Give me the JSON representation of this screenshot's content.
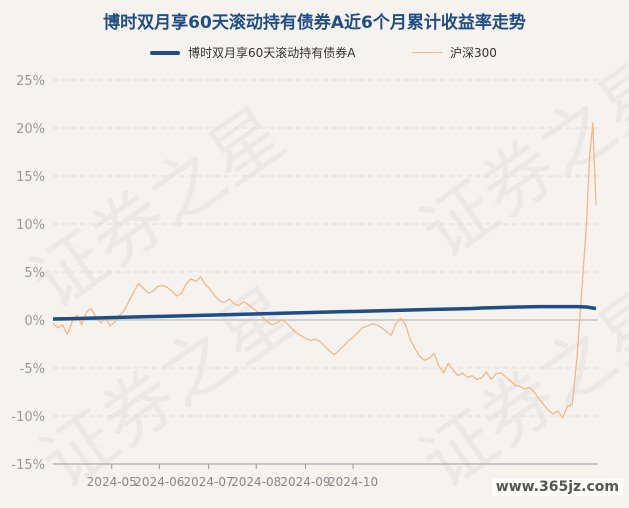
{
  "chart_data": {
    "type": "line",
    "title": "博时双月享60天滚动持有债券A近6个月累计收益率走势",
    "y_ticks": [
      "25%",
      "20%",
      "15%",
      "10%",
      "5%",
      "0%",
      "-5%",
      "-10%",
      "-15%"
    ],
    "ylim": [
      -15,
      25
    ],
    "x_ticks": [
      "2024-05",
      "2024-06",
      "2024-07",
      "2024-08",
      "2024-09",
      "2024-10"
    ],
    "grid": true,
    "legend_position": "top",
    "series": [
      {
        "name": "博时双月享60天滚动持有债券A",
        "color": "#1f4d86",
        "values": [
          [
            0,
            0.1
          ],
          [
            12,
            0.15
          ],
          [
            24,
            0.2
          ],
          [
            36,
            0.25
          ],
          [
            48,
            0.3
          ],
          [
            60,
            0.35
          ],
          [
            72,
            0.4
          ],
          [
            84,
            0.45
          ],
          [
            96,
            0.5
          ],
          [
            108,
            0.55
          ],
          [
            120,
            0.6
          ],
          [
            132,
            0.65
          ],
          [
            144,
            0.7
          ],
          [
            156,
            0.75
          ],
          [
            168,
            0.8
          ],
          [
            180,
            0.85
          ],
          [
            192,
            0.9
          ],
          [
            204,
            0.95
          ],
          [
            216,
            1.0
          ],
          [
            228,
            1.05
          ],
          [
            240,
            1.1
          ],
          [
            252,
            1.15
          ],
          [
            264,
            1.2
          ],
          [
            270,
            1.25
          ],
          [
            282,
            1.3
          ],
          [
            294,
            1.35
          ],
          [
            306,
            1.4
          ],
          [
            318,
            1.4
          ],
          [
            330,
            1.4
          ],
          [
            336,
            1.35
          ],
          [
            342,
            1.2
          ]
        ]
      },
      {
        "name": "沪深300",
        "color": "#f2b888",
        "values": [
          [
            0,
            -0.3
          ],
          [
            3,
            -0.8
          ],
          [
            6,
            -0.5
          ],
          [
            9,
            -1.5
          ],
          [
            12,
            -0.2
          ],
          [
            15,
            0.5
          ],
          [
            18,
            -0.5
          ],
          [
            21,
            0.8
          ],
          [
            24,
            1.2
          ],
          [
            27,
            0.3
          ],
          [
            30,
            -0.3
          ],
          [
            33,
            0.2
          ],
          [
            36,
            -0.6
          ],
          [
            39,
            -0.2
          ],
          [
            42,
            0.5
          ],
          [
            45,
            1.0
          ],
          [
            48,
            2.0
          ],
          [
            51,
            3.0
          ],
          [
            54,
            3.8
          ],
          [
            57,
            3.3
          ],
          [
            60,
            2.8
          ],
          [
            63,
            3.0
          ],
          [
            66,
            3.5
          ],
          [
            69,
            3.6
          ],
          [
            72,
            3.4
          ],
          [
            75,
            3.0
          ],
          [
            78,
            2.5
          ],
          [
            81,
            2.8
          ],
          [
            84,
            3.8
          ],
          [
            87,
            4.3
          ],
          [
            90,
            4.0
          ],
          [
            93,
            4.5
          ],
          [
            96,
            3.7
          ],
          [
            99,
            3.2
          ],
          [
            102,
            2.5
          ],
          [
            105,
            2.0
          ],
          [
            108,
            1.8
          ],
          [
            111,
            2.2
          ],
          [
            114,
            1.7
          ],
          [
            117,
            1.5
          ],
          [
            120,
            1.9
          ],
          [
            123,
            1.6
          ],
          [
            126,
            1.2
          ],
          [
            129,
            0.8
          ],
          [
            132,
            0.3
          ],
          [
            135,
            -0.2
          ],
          [
            138,
            -0.5
          ],
          [
            141,
            -0.3
          ],
          [
            144,
            0.0
          ],
          [
            147,
            -0.3
          ],
          [
            150,
            -0.8
          ],
          [
            153,
            -1.3
          ],
          [
            156,
            -1.6
          ],
          [
            159,
            -1.9
          ],
          [
            162,
            -2.1
          ],
          [
            165,
            -2.0
          ],
          [
            168,
            -2.2
          ],
          [
            171,
            -2.7
          ],
          [
            174,
            -3.2
          ],
          [
            177,
            -3.6
          ],
          [
            180,
            -3.2
          ],
          [
            183,
            -2.7
          ],
          [
            186,
            -2.2
          ],
          [
            189,
            -1.8
          ],
          [
            192,
            -1.3
          ],
          [
            195,
            -0.8
          ],
          [
            198,
            -0.6
          ],
          [
            201,
            -0.4
          ],
          [
            204,
            -0.5
          ],
          [
            207,
            -0.8
          ],
          [
            210,
            -1.2
          ],
          [
            213,
            -1.6
          ],
          [
            216,
            -0.4
          ],
          [
            219,
            0.2
          ],
          [
            222,
            -0.5
          ],
          [
            225,
            -2.0
          ],
          [
            228,
            -3.0
          ],
          [
            231,
            -3.8
          ],
          [
            234,
            -4.2
          ],
          [
            237,
            -4.0
          ],
          [
            240,
            -3.5
          ],
          [
            243,
            -4.8
          ],
          [
            246,
            -5.5
          ],
          [
            249,
            -4.5
          ],
          [
            252,
            -5.2
          ],
          [
            255,
            -5.8
          ],
          [
            258,
            -5.5
          ],
          [
            261,
            -6.0
          ],
          [
            264,
            -5.8
          ],
          [
            267,
            -6.2
          ],
          [
            270,
            -6.0
          ],
          [
            273,
            -5.4
          ],
          [
            276,
            -6.2
          ],
          [
            279,
            -5.6
          ],
          [
            282,
            -5.5
          ],
          [
            285,
            -5.9
          ],
          [
            288,
            -6.3
          ],
          [
            291,
            -6.8
          ],
          [
            294,
            -6.9
          ],
          [
            297,
            -7.2
          ],
          [
            300,
            -7.0
          ],
          [
            303,
            -7.5
          ],
          [
            306,
            -8.2
          ],
          [
            309,
            -8.8
          ],
          [
            312,
            -9.4
          ],
          [
            315,
            -9.8
          ],
          [
            318,
            -9.5
          ],
          [
            321,
            -10.2
          ],
          [
            324,
            -9.0
          ],
          [
            327,
            -8.8
          ],
          [
            330,
            -4.0
          ],
          [
            333,
            3.0
          ],
          [
            336,
            10.0
          ],
          [
            338,
            17.0
          ],
          [
            340,
            20.5
          ],
          [
            342,
            12.0
          ]
        ]
      }
    ]
  },
  "watermark": {
    "text": "证券之星",
    "site": "www.365jz.com"
  }
}
